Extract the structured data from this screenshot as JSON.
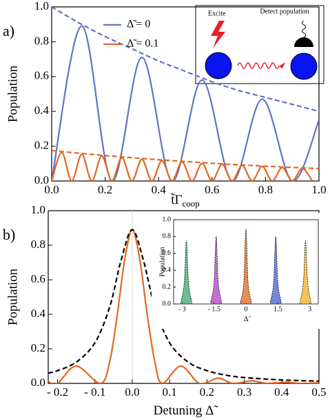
{
  "chart_data": [
    {
      "type": "line",
      "panel_label": "a)",
      "ylabel": "Population",
      "xlabel": {
        "main": "t̃Γ",
        "sub": "coop"
      },
      "xlim": [
        0,
        1
      ],
      "ylim": [
        0,
        1
      ],
      "xticks": [
        {
          "value": 0,
          "label": "0.0"
        },
        0.2,
        0.4,
        0.6,
        0.8,
        {
          "value": 1,
          "label": "1.0"
        }
      ],
      "yticks": [
        {
          "value": 0,
          "label": "0.0"
        },
        0.2,
        0.4,
        0.6,
        0.8,
        {
          "value": 1,
          "label": "1.0"
        }
      ],
      "inset": {
        "excite": "Excite",
        "detect": "Detect population"
      },
      "series": [
        {
          "name": "Δ̃ = 0",
          "color": "#6272c4",
          "x": [
            0,
            0.1125,
            0.225,
            0.3375,
            0.45,
            0.5625,
            0.675,
            0.7875,
            0.9,
            1.0
          ],
          "values": [
            0,
            0.89,
            0,
            0.71,
            0,
            0.58,
            0,
            0.47,
            0,
            0.35
          ]
        },
        {
          "name": "Δ̃ = 0.1",
          "color": "#e2671e",
          "x": [
            0,
            0.0375,
            0.075,
            0.1125,
            0.15,
            0.1875,
            0.225,
            0.2625,
            0.3,
            0.3375,
            0.375,
            0.4125,
            0.45,
            0.4875,
            0.525,
            0.5625,
            0.6,
            0.6375,
            0.675,
            0.7125,
            0.75,
            0.7875,
            0.825,
            0.8625,
            0.9,
            0.9375,
            0.975
          ],
          "values": [
            0,
            0.164,
            0,
            0.154,
            0,
            0.144,
            0,
            0.134,
            0,
            0.125,
            0,
            0.117,
            0,
            0.11,
            0,
            0.102,
            0,
            0.096,
            0,
            0.09,
            0,
            0.084,
            0,
            0.078,
            0,
            0.073,
            0
          ]
        },
        {
          "color": "#6272c4",
          "dash": true,
          "x": [
            0,
            0.1,
            0.2,
            0.3,
            0.4,
            0.5,
            0.6,
            0.7,
            0.8,
            0.9,
            1.0
          ],
          "values": [
            1.0,
            0.91,
            0.83,
            0.76,
            0.69,
            0.63,
            0.57,
            0.52,
            0.48,
            0.44,
            0.4
          ]
        },
        {
          "color": "#e2671e",
          "dash": true,
          "x": [
            0,
            0.1,
            0.2,
            0.3,
            0.4,
            0.5,
            0.6,
            0.7,
            0.8,
            0.9,
            1.0
          ],
          "values": [
            0.175,
            0.16,
            0.146,
            0.134,
            0.122,
            0.112,
            0.102,
            0.093,
            0.085,
            0.078,
            0.071
          ]
        }
      ]
    },
    {
      "type": "line",
      "panel_label": "b)",
      "ylabel": "Population",
      "xlabel": {
        "main": "Detuning Δ̃"
      },
      "xlim": [
        -0.225,
        0.5
      ],
      "ylim": [
        0,
        1
      ],
      "vlines": [
        0
      ],
      "xticks": [
        {
          "value": -0.2,
          "label": "- 0.2"
        },
        {
          "value": -0.1,
          "label": "- 0.1"
        },
        {
          "value": 0,
          "label": "0.0"
        },
        0.1,
        0.2,
        0.3,
        0.4,
        0.5
      ],
      "yticks": [
        {
          "value": 0,
          "label": "0.0"
        },
        0.2,
        0.4,
        0.6,
        0.8,
        {
          "value": 1,
          "label": "1.0"
        }
      ],
      "series": [
        {
          "color": "#e2671e",
          "x": [
            -0.225,
            -0.2,
            -0.15,
            -0.085,
            -0.06,
            -0.04,
            -0.02,
            0,
            0.02,
            0.04,
            0.06,
            0.08,
            0.13,
            0.18,
            0.23,
            0.27,
            0.32,
            0.36,
            0.41,
            0.45,
            0.5
          ],
          "values": [
            0.01,
            0.0,
            0.1,
            0,
            0.13,
            0.4,
            0.72,
            0.89,
            0.72,
            0.4,
            0.13,
            0,
            0.1,
            0,
            0.03,
            0,
            0.015,
            0,
            0.007,
            0,
            0.003
          ]
        },
        {
          "color": "#000000",
          "dash": true,
          "x": [
            -0.225,
            -0.2,
            -0.15,
            -0.1,
            -0.06,
            -0.03,
            0,
            0.03,
            0.06,
            0.1,
            0.15,
            0.2,
            0.25,
            0.3,
            0.4,
            0.5
          ],
          "values": [
            0.059,
            0.074,
            0.123,
            0.235,
            0.445,
            0.712,
            0.89,
            0.712,
            0.445,
            0.235,
            0.123,
            0.074,
            0.048,
            0.034,
            0.02,
            0.013
          ]
        }
      ]
    },
    {
      "type": "area",
      "ylabel": "Population",
      "xlabel": {
        "main": "Δ̃"
      },
      "xlim": [
        -3.4,
        3.4
      ],
      "ylim": [
        0,
        1
      ],
      "xticks": [
        {
          "value": -3,
          "label": "- 3"
        },
        {
          "value": -1.5,
          "label": "- 1.5"
        },
        0,
        1.5,
        3
      ],
      "yticks": [
        {
          "value": 0,
          "label": "0.0"
        },
        0.2,
        0.4,
        0.6,
        0.8,
        {
          "value": 1,
          "label": "1.0"
        }
      ],
      "series": [
        {
          "color": "#3aa86b",
          "x": [
            -3.05,
            -2.9,
            -2.8,
            -2.7,
            -2.55
          ],
          "values": [
            0.03,
            0.25,
            0.75,
            0.25,
            0.03
          ]
        },
        {
          "color": "#b03fc4",
          "x": [
            -1.65,
            -1.5,
            -1.4,
            -1.3,
            -1.15
          ],
          "values": [
            0.03,
            0.25,
            0.8,
            0.25,
            0.03
          ]
        },
        {
          "color": "#e2671e",
          "x": [
            -0.25,
            -0.1,
            0,
            0.1,
            0.25
          ],
          "values": [
            0.03,
            0.25,
            0.89,
            0.25,
            0.03
          ]
        },
        {
          "color": "#4a5fd0",
          "x": [
            1.15,
            1.3,
            1.4,
            1.5,
            1.65
          ],
          "values": [
            0.03,
            0.25,
            0.8,
            0.25,
            0.03
          ]
        },
        {
          "color": "#f0b020",
          "x": [
            2.55,
            2.7,
            2.8,
            2.9,
            3.05
          ],
          "values": [
            0.03,
            0.25,
            0.75,
            0.25,
            0.03
          ]
        }
      ]
    }
  ]
}
